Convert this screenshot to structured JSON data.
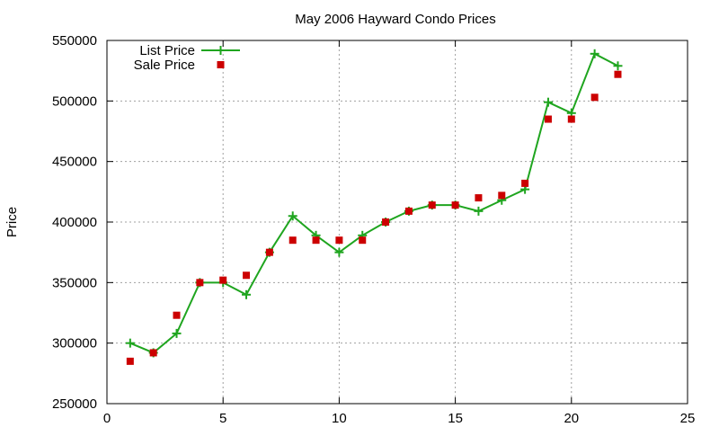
{
  "chart_data": {
    "type": "line",
    "title": "May 2006 Hayward Condo Prices",
    "xlabel": "",
    "ylabel": "Price",
    "xlim": [
      0,
      25
    ],
    "ylim": [
      250000,
      550000
    ],
    "xticks": [
      0,
      5,
      10,
      15,
      20,
      25
    ],
    "yticks": [
      250000,
      300000,
      350000,
      400000,
      450000,
      500000,
      550000
    ],
    "grid": true,
    "legend_position": "top-left",
    "series": [
      {
        "name": "List Price",
        "style": "line-plus",
        "color": "#1fa51f",
        "x": [
          1,
          2,
          3,
          4,
          5,
          6,
          7,
          8,
          9,
          10,
          11,
          12,
          13,
          14,
          15,
          16,
          17,
          18,
          19,
          20,
          21,
          22
        ],
        "y": [
          300000,
          292000,
          308000,
          350000,
          350000,
          340000,
          375000,
          405000,
          389000,
          375000,
          389000,
          400000,
          409000,
          414000,
          414000,
          409000,
          418000,
          427000,
          499000,
          490000,
          539000,
          529000
        ]
      },
      {
        "name": "Sale Price",
        "style": "square-markers",
        "color": "#cc0000",
        "x": [
          1,
          2,
          3,
          4,
          5,
          6,
          7,
          8,
          9,
          10,
          11,
          12,
          13,
          14,
          15,
          16,
          17,
          18,
          19,
          20,
          21,
          22
        ],
        "y": [
          285000,
          292000,
          323000,
          350000,
          352000,
          356000,
          375000,
          385000,
          385000,
          385000,
          385000,
          400000,
          409000,
          414000,
          414000,
          420000,
          422000,
          432000,
          485000,
          485000,
          503000,
          522000
        ]
      }
    ]
  }
}
